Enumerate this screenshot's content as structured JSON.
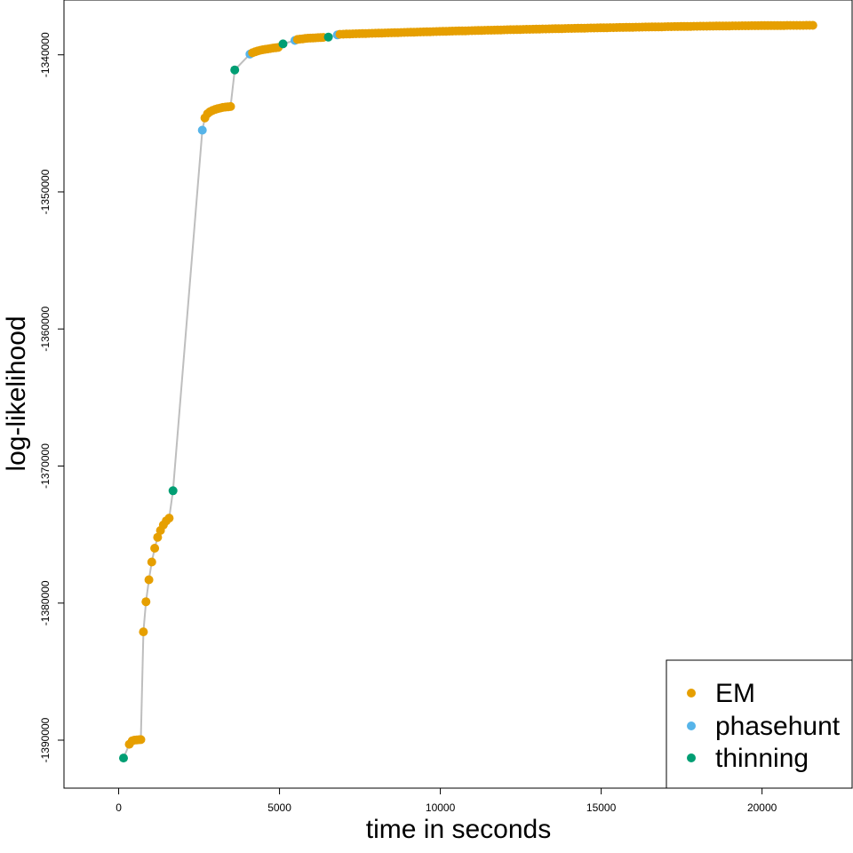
{
  "chart_data": {
    "type": "scatter",
    "title": "",
    "xlabel": "time in seconds",
    "ylabel": "log-likelihood",
    "xlim": [
      -1700,
      22800
    ],
    "ylim": [
      -1393500,
      -1336000
    ],
    "xticks": [
      0,
      5000,
      10000,
      15000,
      20000
    ],
    "xtick_labels": [
      "0",
      "5000",
      "10000",
      "15000",
      "20000"
    ],
    "yticks": [
      -1390000,
      -1380000,
      -1370000,
      -1360000,
      -1350000,
      -1340000
    ],
    "ytick_labels": [
      "-1390000",
      "-1380000",
      "-1370000",
      "-1360000",
      "-1350000",
      "-1340000"
    ],
    "grid": false,
    "legend_position": "bottom-right",
    "connector_color": "#BEBEBE",
    "series": [
      {
        "name": "EM",
        "color": "#E69F00"
      },
      {
        "name": "phasehunt",
        "color": "#56B4E9"
      },
      {
        "name": "thinning",
        "color": "#009E73"
      }
    ],
    "points": [
      {
        "x": 150,
        "y": -1391300,
        "s": "thinning"
      },
      {
        "x": 330,
        "y": -1390300,
        "s": "EM"
      },
      {
        "x": 420,
        "y": -1390050,
        "s": "EM"
      },
      {
        "x": 490,
        "y": -1390000,
        "s": "EM"
      },
      {
        "x": 560,
        "y": -1389980,
        "s": "EM"
      },
      {
        "x": 630,
        "y": -1389970,
        "s": "EM"
      },
      {
        "x": 690,
        "y": -1389960,
        "s": "EM"
      },
      {
        "x": 770,
        "y": -1382100,
        "s": "EM"
      },
      {
        "x": 850,
        "y": -1379900,
        "s": "EM"
      },
      {
        "x": 940,
        "y": -1378300,
        "s": "EM"
      },
      {
        "x": 1030,
        "y": -1377000,
        "s": "EM"
      },
      {
        "x": 1120,
        "y": -1376000,
        "s": "EM"
      },
      {
        "x": 1210,
        "y": -1375200,
        "s": "EM"
      },
      {
        "x": 1300,
        "y": -1374700,
        "s": "EM"
      },
      {
        "x": 1390,
        "y": -1374300,
        "s": "EM"
      },
      {
        "x": 1480,
        "y": -1374000,
        "s": "EM"
      },
      {
        "x": 1570,
        "y": -1373800,
        "s": "EM"
      },
      {
        "x": 1690,
        "y": -1371800,
        "s": "thinning"
      },
      {
        "x": 2600,
        "y": -1345500,
        "s": "phasehunt"
      },
      {
        "x": 2680,
        "y": -1344600,
        "s": "EM"
      },
      {
        "x": 2760,
        "y": -1344300,
        "s": "EM"
      },
      {
        "x": 2840,
        "y": -1344150,
        "s": "EM"
      },
      {
        "x": 2920,
        "y": -1344050,
        "s": "EM"
      },
      {
        "x": 3000,
        "y": -1343980,
        "s": "EM"
      },
      {
        "x": 3080,
        "y": -1343920,
        "s": "EM"
      },
      {
        "x": 3160,
        "y": -1343880,
        "s": "EM"
      },
      {
        "x": 3240,
        "y": -1343840,
        "s": "EM"
      },
      {
        "x": 3320,
        "y": -1343810,
        "s": "EM"
      },
      {
        "x": 3400,
        "y": -1343790,
        "s": "EM"
      },
      {
        "x": 3480,
        "y": -1343770,
        "s": "EM"
      },
      {
        "x": 3610,
        "y": -1341100,
        "s": "thinning"
      },
      {
        "x": 4080,
        "y": -1339950,
        "s": "phasehunt"
      },
      {
        "x": 4160,
        "y": -1339850,
        "s": "EM"
      },
      {
        "x": 4240,
        "y": -1339780,
        "s": "EM"
      },
      {
        "x": 4320,
        "y": -1339720,
        "s": "EM"
      },
      {
        "x": 4400,
        "y": -1339670,
        "s": "EM"
      },
      {
        "x": 4480,
        "y": -1339630,
        "s": "EM"
      },
      {
        "x": 4560,
        "y": -1339600,
        "s": "EM"
      },
      {
        "x": 4640,
        "y": -1339570,
        "s": "EM"
      },
      {
        "x": 4720,
        "y": -1339540,
        "s": "EM"
      },
      {
        "x": 4800,
        "y": -1339510,
        "s": "EM"
      },
      {
        "x": 4880,
        "y": -1339480,
        "s": "EM"
      },
      {
        "x": 4960,
        "y": -1339460,
        "s": "EM"
      },
      {
        "x": 5110,
        "y": -1339200,
        "s": "thinning"
      },
      {
        "x": 5480,
        "y": -1338950,
        "s": "phasehunt"
      },
      {
        "x": 5560,
        "y": -1338880,
        "s": "EM"
      },
      {
        "x": 5640,
        "y": -1338850,
        "s": "EM"
      },
      {
        "x": 5720,
        "y": -1338830,
        "s": "EM"
      },
      {
        "x": 5800,
        "y": -1338810,
        "s": "EM"
      },
      {
        "x": 5880,
        "y": -1338790,
        "s": "EM"
      },
      {
        "x": 5960,
        "y": -1338780,
        "s": "EM"
      },
      {
        "x": 6040,
        "y": -1338770,
        "s": "EM"
      },
      {
        "x": 6120,
        "y": -1338760,
        "s": "EM"
      },
      {
        "x": 6200,
        "y": -1338750,
        "s": "EM"
      },
      {
        "x": 6280,
        "y": -1338740,
        "s": "EM"
      },
      {
        "x": 6360,
        "y": -1338730,
        "s": "EM"
      },
      {
        "x": 6520,
        "y": -1338700,
        "s": "thinning"
      },
      {
        "x": 6800,
        "y": -1338550,
        "s": "phasehunt"
      }
    ],
    "em_tail": {
      "x_start": 6880,
      "x_end": 21650,
      "step": 100,
      "y_start": -1338500,
      "y_end": -1337850,
      "series": "EM"
    }
  }
}
